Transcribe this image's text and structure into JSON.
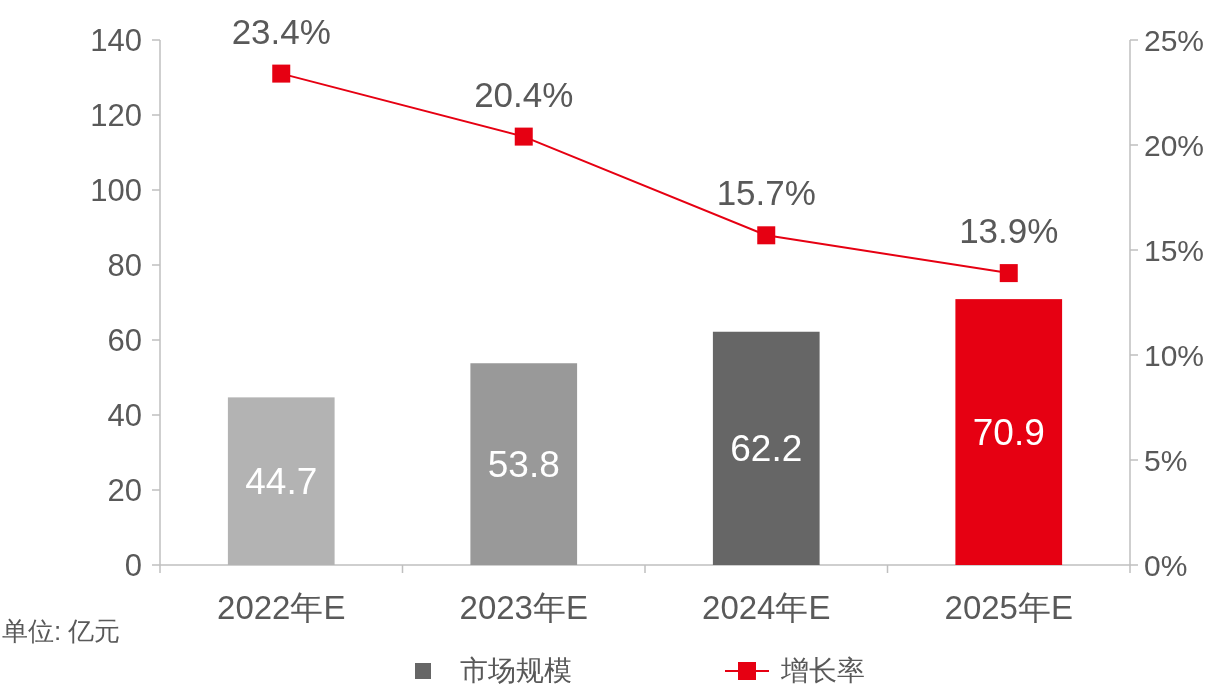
{
  "chart_data": {
    "type": "bar",
    "categories": [
      "2022年E",
      "2023年E",
      "2024年E",
      "2025年E"
    ],
    "series": [
      {
        "name": "市场规模",
        "color": "#666666",
        "colors": [
          "#b3b3b3",
          "#999999",
          "#666666",
          "#e60012"
        ],
        "values": [
          44.7,
          53.8,
          62.2,
          70.9
        ],
        "value_labels": [
          "44.7",
          "53.8",
          "62.2",
          "70.9"
        ]
      },
      {
        "name": "增长率",
        "type": "line",
        "axis": "y2",
        "color": "#e60012",
        "values": [
          23.4,
          20.4,
          15.7,
          13.9
        ],
        "value_labels": [
          "23.4%",
          "20.4%",
          "15.7%",
          "13.9%"
        ]
      }
    ],
    "marker": "square",
    "ylim": [
      0,
      140
    ],
    "yticks": [
      0,
      20,
      40,
      60,
      80,
      100,
      120,
      140
    ],
    "y2lim": [
      0,
      25
    ],
    "y2ticks": [
      {
        "value": 0,
        "label": "0%"
      },
      {
        "value": 5,
        "label": "5%"
      },
      {
        "value": 10,
        "label": "10%"
      },
      {
        "value": 15,
        "label": "15%"
      },
      {
        "value": 20,
        "label": "20%"
      },
      {
        "value": 25,
        "label": "25%"
      }
    ],
    "legend": "bottom",
    "annotations": [
      "单位: 亿元"
    ]
  }
}
